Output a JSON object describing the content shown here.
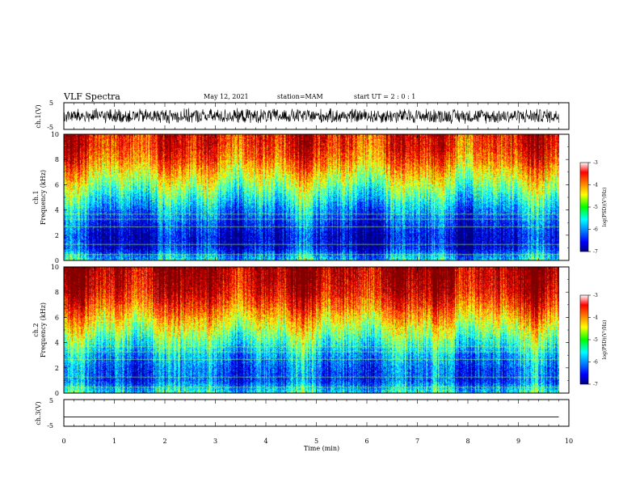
{
  "header": {
    "title": "VLF Spectra",
    "date": "May 12, 2021",
    "station": "station=MAM",
    "start": "start  UT  =   2 : 0  : 1"
  },
  "chart_data": {
    "type": "heatmap",
    "x_axis": {
      "label": "Time (min)",
      "range": [
        0,
        10
      ],
      "ticks": [
        "0",
        "1",
        "2",
        "3",
        "4",
        "5",
        "6",
        "7",
        "8",
        "9",
        "10"
      ],
      "data_end": 9.8
    },
    "panels": [
      {
        "id": "ch1-waveform",
        "type": "line",
        "ylabel": "ch.1(V)",
        "yrange": [
          -5,
          5
        ],
        "yticks": [
          "5",
          "-5"
        ],
        "description": "noisy signal between about -3 and 3 V"
      },
      {
        "id": "ch1-spectrogram",
        "type": "heatmap",
        "ylabel_line1": "ch.1",
        "ylabel_line2": "Frequency (kHz)",
        "yrange": [
          0,
          10
        ],
        "yticks": [
          "0",
          "2",
          "4",
          "6",
          "8",
          "10"
        ],
        "z_label": "log(PSD)(V²/Hz)",
        "z_range": [
          -7,
          -3
        ],
        "z_ticks": [
          "-3",
          "-4",
          "-5",
          "-6",
          "-7"
        ],
        "profile_khz": [
          0,
          1,
          2,
          3,
          4,
          5,
          6,
          7,
          8,
          9,
          10
        ],
        "profile_logpsd": [
          -5.5,
          -6.5,
          -6.6,
          -6.3,
          -5.9,
          -5.4,
          -4.9,
          -4.4,
          -3.9,
          -3.6,
          -3.5
        ]
      },
      {
        "id": "ch2-spectrogram",
        "type": "heatmap",
        "ylabel_line1": "ch.2",
        "ylabel_line2": "Frequency (kHz)",
        "yrange": [
          0,
          10
        ],
        "yticks": [
          "0",
          "2",
          "4",
          "6",
          "8",
          "10"
        ],
        "z_label": "log(PSD)(V²/Hz)",
        "z_range": [
          -7,
          -3
        ],
        "z_ticks": [
          "-3",
          "-4",
          "-5",
          "-6",
          "-7"
        ],
        "profile_khz": [
          0,
          1,
          2,
          3,
          4,
          5,
          6,
          7,
          8,
          9,
          10
        ],
        "profile_logpsd": [
          -5.4,
          -6.2,
          -6.1,
          -5.8,
          -5.3,
          -4.8,
          -4.3,
          -3.8,
          -3.4,
          -3.2,
          -3.1
        ]
      },
      {
        "id": "ch3-waveform",
        "type": "line",
        "ylabel": "ch.3(V)",
        "yrange": [
          -5,
          5
        ],
        "yticks": [
          "5",
          "-5"
        ],
        "description": "flat line at about -1.5 V"
      }
    ],
    "colormap": "jet"
  }
}
